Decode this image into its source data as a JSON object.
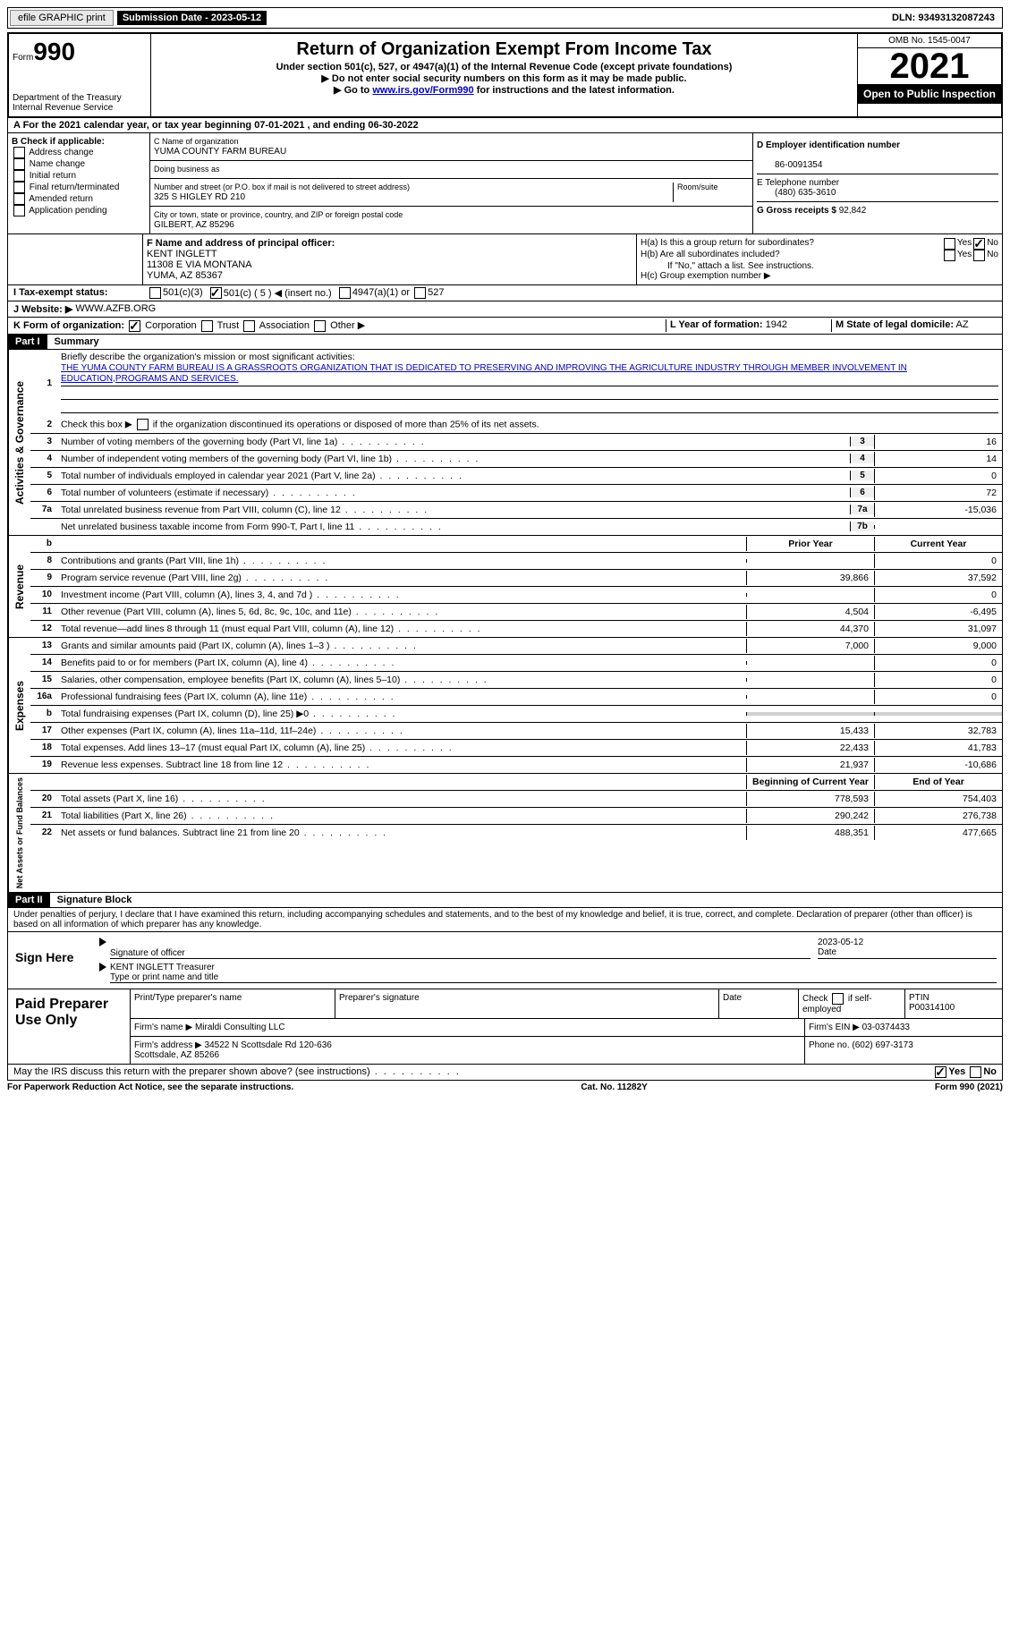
{
  "topbar": {
    "efile": "efile GRAPHIC print",
    "submission": "Submission Date - 2023-05-12",
    "dln": "DLN: 93493132087243"
  },
  "header": {
    "form_label": "Form",
    "form_num": "990",
    "title": "Return of Organization Exempt From Income Tax",
    "subtitle": "Under section 501(c), 527, or 4947(a)(1) of the Internal Revenue Code (except private foundations)",
    "note1": "▶ Do not enter social security numbers on this form as it may be made public.",
    "note2_pre": "▶ Go to ",
    "note2_link": "www.irs.gov/Form990",
    "note2_post": " for instructions and the latest information.",
    "dept": "Department of the Treasury\nInternal Revenue Service",
    "omb": "OMB No. 1545-0047",
    "year": "2021",
    "open": "Open to Public Inspection"
  },
  "line_a": "A For the 2021 calendar year, or tax year beginning 07-01-2021   , and ending 06-30-2022",
  "block_b": {
    "label": "B Check if applicable:",
    "opts": [
      "Address change",
      "Name change",
      "Initial return",
      "Final return/terminated",
      "Amended return",
      "Application pending"
    ]
  },
  "block_c": {
    "name_label": "C Name of organization",
    "name": "YUMA COUNTY FARM BUREAU",
    "dba_label": "Doing business as",
    "dba": "",
    "addr_label": "Number and street (or P.O. box if mail is not delivered to street address)",
    "room_label": "Room/suite",
    "addr": "325 S HIGLEY RD 210",
    "city_label": "City or town, state or province, country, and ZIP or foreign postal code",
    "city": "GILBERT, AZ  85296"
  },
  "block_d": {
    "ein_label": "D Employer identification number",
    "ein": "86-0091354",
    "tel_label": "E Telephone number",
    "tel": "(480) 635-3610",
    "gross_label": "G Gross receipts $",
    "gross": "92,842"
  },
  "block_f": {
    "label": "F  Name and address of principal officer:",
    "name": "KENT INGLETT",
    "addr1": "11308 E VIA MONTANA",
    "addr2": "YUMA, AZ  85367"
  },
  "block_h": {
    "a": "H(a)  Is this a group return for subordinates?",
    "b": "H(b)  Are all subordinates included?",
    "b_note": "If \"No,\" attach a list. See instructions.",
    "c": "H(c)  Group exemption number ▶"
  },
  "block_i": {
    "label": "I  Tax-exempt status:",
    "opts": [
      "501(c)(3)",
      "501(c) ( 5 ) ◀ (insert no.)",
      "4947(a)(1) or",
      "527"
    ]
  },
  "block_j": {
    "label": "J  Website: ▶",
    "val": "WWW.AZFB.ORG"
  },
  "block_k": {
    "label": "K Form of organization:",
    "opts": [
      "Corporation",
      "Trust",
      "Association",
      "Other ▶"
    ]
  },
  "block_l": {
    "label": "L Year of formation:",
    "val": "1942"
  },
  "block_m": {
    "label": "M State of legal domicile:",
    "val": "AZ"
  },
  "part1": {
    "header": "Part I",
    "title": "Summary",
    "line1_label": "Briefly describe the organization's mission or most significant activities:",
    "mission": "THE YUMA COUNTY FARM BUREAU IS A GRASSROOTS ORGANIZATION THAT IS DEDICATED TO PRESERVING AND IMPROVING THE AGRICULTURE INDUSTRY THROUGH MEMBER INVOLVEMENT IN EDUCATION,PROGRAMS AND SERVICES.",
    "line2": "Check this box ▶     if the organization discontinued its operations or disposed of more than 25% of its net assets.",
    "governance_label": "Activities & Governance",
    "revenue_label": "Revenue",
    "expenses_label": "Expenses",
    "netassets_label": "Net Assets or Fund Balances",
    "prior_header": "Prior Year",
    "current_header": "Current Year",
    "begin_header": "Beginning of Current Year",
    "end_header": "End of Year",
    "lines_gov": [
      {
        "n": "3",
        "t": "Number of voting members of the governing body (Part VI, line 1a)",
        "box": "3",
        "v": "16"
      },
      {
        "n": "4",
        "t": "Number of independent voting members of the governing body (Part VI, line 1b)",
        "box": "4",
        "v": "14"
      },
      {
        "n": "5",
        "t": "Total number of individuals employed in calendar year 2021 (Part V, line 2a)",
        "box": "5",
        "v": "0"
      },
      {
        "n": "6",
        "t": "Total number of volunteers (estimate if necessary)",
        "box": "6",
        "v": "72"
      },
      {
        "n": "7a",
        "t": "Total unrelated business revenue from Part VIII, column (C), line 12",
        "box": "7a",
        "v": "-15,036"
      },
      {
        "n": "",
        "t": "Net unrelated business taxable income from Form 990-T, Part I, line 11",
        "box": "7b",
        "v": ""
      }
    ],
    "lines_rev": [
      {
        "n": "8",
        "t": "Contributions and grants (Part VIII, line 1h)",
        "p": "",
        "c": "0"
      },
      {
        "n": "9",
        "t": "Program service revenue (Part VIII, line 2g)",
        "p": "39,866",
        "c": "37,592"
      },
      {
        "n": "10",
        "t": "Investment income (Part VIII, column (A), lines 3, 4, and 7d )",
        "p": "",
        "c": "0"
      },
      {
        "n": "11",
        "t": "Other revenue (Part VIII, column (A), lines 5, 6d, 8c, 9c, 10c, and 11e)",
        "p": "4,504",
        "c": "-6,495"
      },
      {
        "n": "12",
        "t": "Total revenue—add lines 8 through 11 (must equal Part VIII, column (A), line 12)",
        "p": "44,370",
        "c": "31,097"
      }
    ],
    "lines_exp": [
      {
        "n": "13",
        "t": "Grants and similar amounts paid (Part IX, column (A), lines 1–3 )",
        "p": "7,000",
        "c": "9,000"
      },
      {
        "n": "14",
        "t": "Benefits paid to or for members (Part IX, column (A), line 4)",
        "p": "",
        "c": "0"
      },
      {
        "n": "15",
        "t": "Salaries, other compensation, employee benefits (Part IX, column (A), lines 5–10)",
        "p": "",
        "c": "0"
      },
      {
        "n": "16a",
        "t": "Professional fundraising fees (Part IX, column (A), line 11e)",
        "p": "",
        "c": "0"
      },
      {
        "n": "b",
        "t": "Total fundraising expenses (Part IX, column (D), line 25) ▶0",
        "p": "grey",
        "c": "grey"
      },
      {
        "n": "17",
        "t": "Other expenses (Part IX, column (A), lines 11a–11d, 11f–24e)",
        "p": "15,433",
        "c": "32,783"
      },
      {
        "n": "18",
        "t": "Total expenses. Add lines 13–17 (must equal Part IX, column (A), line 25)",
        "p": "22,433",
        "c": "41,783"
      },
      {
        "n": "19",
        "t": "Revenue less expenses. Subtract line 18 from line 12",
        "p": "21,937",
        "c": "-10,686"
      }
    ],
    "lines_net": [
      {
        "n": "20",
        "t": "Total assets (Part X, line 16)",
        "p": "778,593",
        "c": "754,403"
      },
      {
        "n": "21",
        "t": "Total liabilities (Part X, line 26)",
        "p": "290,242",
        "c": "276,738"
      },
      {
        "n": "22",
        "t": "Net assets or fund balances. Subtract line 21 from line 20",
        "p": "488,351",
        "c": "477,665"
      }
    ]
  },
  "part2": {
    "header": "Part II",
    "title": "Signature Block",
    "declaration": "Under penalties of perjury, I declare that I have examined this return, including accompanying schedules and statements, and to the best of my knowledge and belief, it is true, correct, and complete. Declaration of preparer (other than officer) is based on all information of which preparer has any knowledge.",
    "sign_here": "Sign Here",
    "sig_officer": "Signature of officer",
    "sig_date": "2023-05-12",
    "date_label": "Date",
    "officer_name": "KENT INGLETT Treasurer",
    "type_name": "Type or print name and title",
    "paid_prep": "Paid Preparer Use Only",
    "prep_name_label": "Print/Type preparer's name",
    "prep_sig_label": "Preparer's signature",
    "prep_date_label": "Date",
    "check_self": "Check       if self-employed",
    "ptin_label": "PTIN",
    "ptin": "P00314100",
    "firm_name_label": "Firm's name    ▶",
    "firm_name": "Miraldi Consulting LLC",
    "firm_ein_label": "Firm's EIN ▶",
    "firm_ein": "03-0374433",
    "firm_addr_label": "Firm's address ▶",
    "firm_addr": "34522 N Scottsdale Rd 120-636\nScottsdale, AZ  85266",
    "phone_label": "Phone no.",
    "phone": "(602) 697-3173",
    "may_irs": "May the IRS discuss this return with the preparer shown above? (see instructions)",
    "yes": "Yes",
    "no": "No"
  },
  "footer": {
    "left": "For Paperwork Reduction Act Notice, see the separate instructions.",
    "mid": "Cat. No. 11282Y",
    "right": "Form 990 (2021)"
  }
}
